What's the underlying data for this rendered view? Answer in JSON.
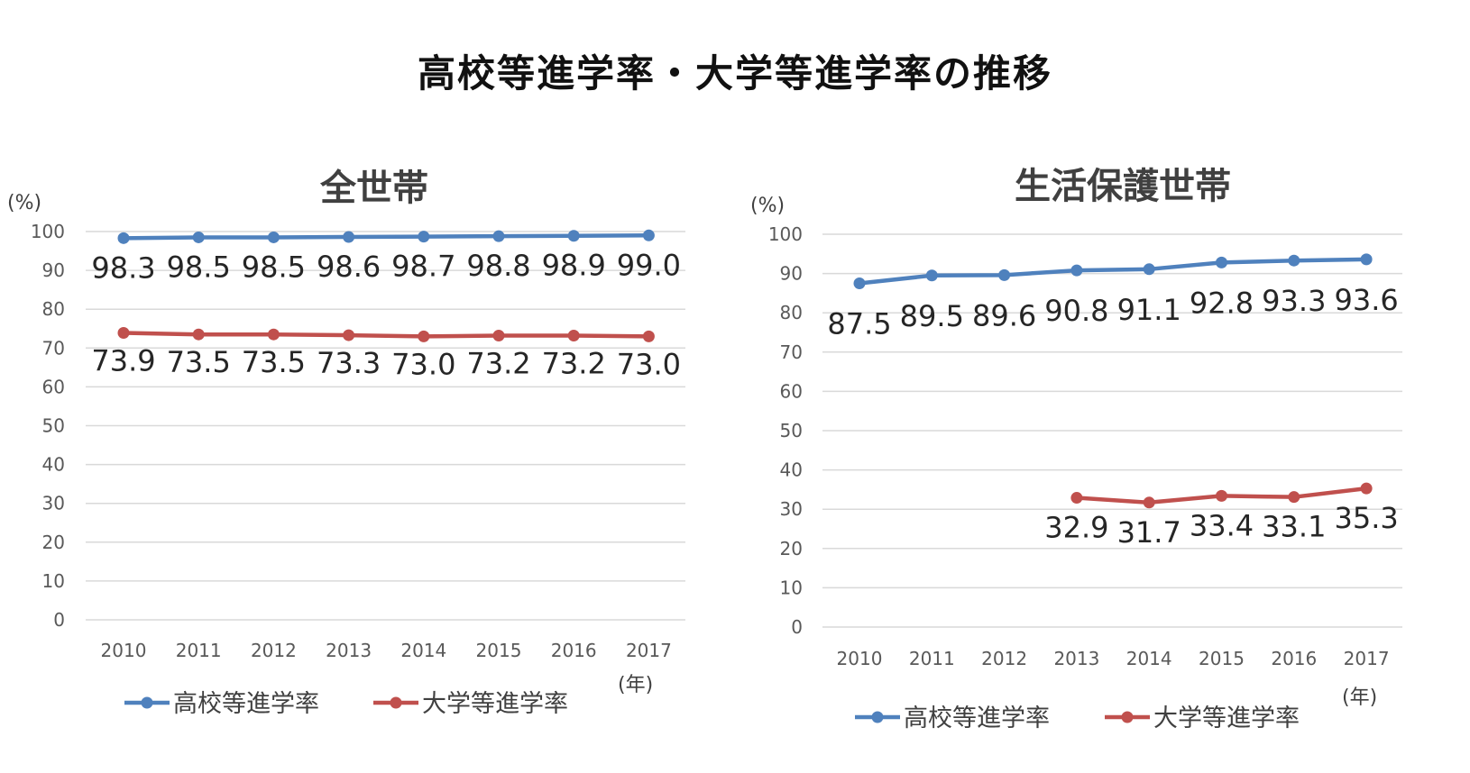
{
  "page": {
    "title": "高校等進学率・大学等進学率の推移"
  },
  "colors": {
    "high_school": "#4f81bd",
    "university": "#c0504d",
    "grid": "#d9d9d9"
  },
  "chart_data": [
    {
      "type": "line",
      "title": "全世帯",
      "ylabel": "(%)",
      "xlabel": "(年)",
      "ylim": [
        0,
        100
      ],
      "yticks": [
        0,
        10,
        20,
        30,
        40,
        50,
        60,
        70,
        80,
        90,
        100
      ],
      "categories": [
        "2010",
        "2011",
        "2012",
        "2013",
        "2014",
        "2015",
        "2016",
        "2017"
      ],
      "grid": true,
      "legend": "bottom",
      "series": [
        {
          "name": "高校等進学率",
          "color": "#4f81bd",
          "values": [
            98.3,
            98.5,
            98.5,
            98.6,
            98.7,
            98.8,
            98.9,
            99.0
          ],
          "labels": [
            "98.3",
            "98.5",
            "98.5",
            "98.6",
            "98.7",
            "98.8",
            "98.9",
            "99.0"
          ]
        },
        {
          "name": "大学等進学率",
          "color": "#c0504d",
          "values": [
            73.9,
            73.5,
            73.5,
            73.3,
            73.0,
            73.2,
            73.2,
            73.0
          ],
          "labels": [
            "73.9",
            "73.5",
            "73.5",
            "73.3",
            "73.0",
            "73.2",
            "73.2",
            "73.0"
          ]
        }
      ]
    },
    {
      "type": "line",
      "title": "生活保護世帯",
      "ylabel": "(%)",
      "xlabel": "(年)",
      "ylim": [
        0,
        100
      ],
      "yticks": [
        0,
        10,
        20,
        30,
        40,
        50,
        60,
        70,
        80,
        90,
        100
      ],
      "categories": [
        "2010",
        "2011",
        "2012",
        "2013",
        "2014",
        "2015",
        "2016",
        "2017"
      ],
      "grid": true,
      "legend": "bottom",
      "series": [
        {
          "name": "高校等進学率",
          "color": "#4f81bd",
          "values": [
            87.5,
            89.5,
            89.6,
            90.8,
            91.1,
            92.8,
            93.3,
            93.6
          ],
          "labels": [
            "87.5",
            "89.5",
            "89.6",
            "90.8",
            "91.1",
            "92.8",
            "93.3",
            "93.6"
          ]
        },
        {
          "name": "大学等進学率",
          "color": "#c0504d",
          "values": [
            null,
            null,
            null,
            32.9,
            31.7,
            33.4,
            33.1,
            35.3
          ],
          "labels": [
            null,
            null,
            null,
            "32.9",
            "31.7",
            "33.4",
            "33.1",
            "35.3"
          ]
        }
      ]
    }
  ]
}
